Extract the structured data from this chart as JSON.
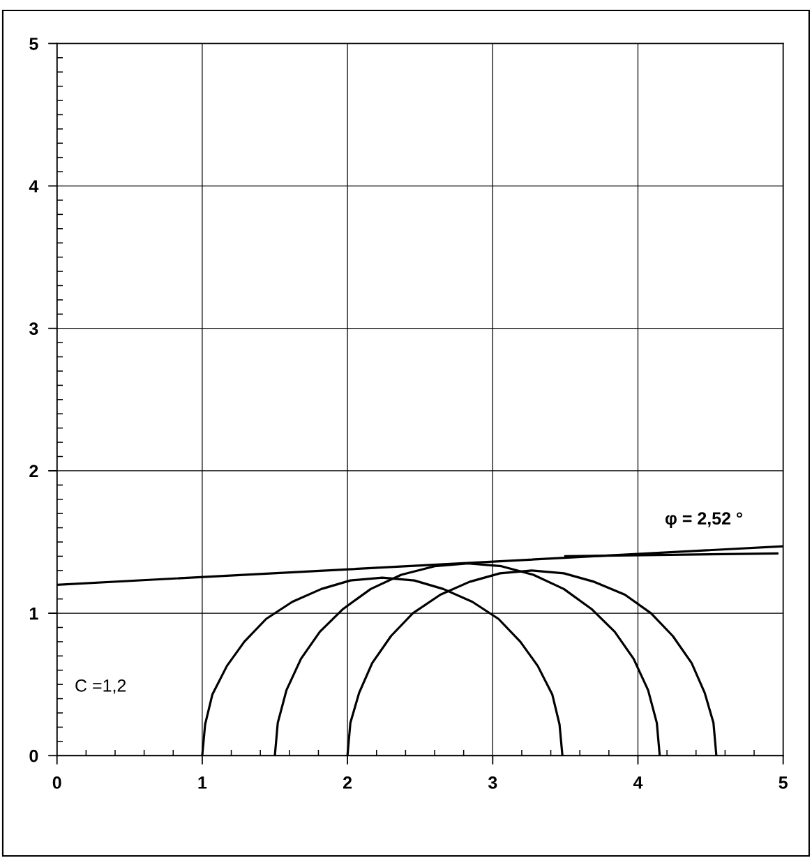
{
  "chart_data": {
    "type": "line",
    "xlim": [
      0,
      5
    ],
    "ylim": [
      0,
      5
    ],
    "xticks": [
      0,
      {
        "value": 0.2,
        "label": null
      },
      {
        "value": 0.4,
        "label": null
      },
      {
        "value": 0.6,
        "label": null
      },
      {
        "value": 0.8,
        "label": null
      },
      1,
      {
        "value": 1.2,
        "label": null
      },
      {
        "value": 1.4,
        "label": null
      },
      {
        "value": 1.6,
        "label": null
      },
      {
        "value": 1.8,
        "label": null
      },
      2,
      {
        "value": 2.2,
        "label": null
      },
      {
        "value": 2.4,
        "label": null
      },
      {
        "value": 2.6,
        "label": null
      },
      {
        "value": 2.8,
        "label": null
      },
      3,
      {
        "value": 3.2,
        "label": null
      },
      {
        "value": 3.4,
        "label": null
      },
      {
        "value": 3.6,
        "label": null
      },
      {
        "value": 3.8,
        "label": null
      },
      4,
      {
        "value": 4.2,
        "label": null
      },
      {
        "value": 4.4,
        "label": null
      },
      {
        "value": 4.6,
        "label": null
      },
      {
        "value": 4.8,
        "label": null
      },
      5
    ],
    "yticks": [
      0,
      {
        "value": 0.1,
        "label": null
      },
      {
        "value": 0.2,
        "label": null
      },
      {
        "value": 0.3,
        "label": null
      },
      {
        "value": 0.4,
        "label": null
      },
      {
        "value": 0.5,
        "label": null
      },
      {
        "value": 0.6,
        "label": null
      },
      {
        "value": 0.7,
        "label": null
      },
      {
        "value": 0.8,
        "label": null
      },
      {
        "value": 0.9,
        "label": null
      },
      1,
      {
        "value": 1.1,
        "label": null
      },
      {
        "value": 1.2,
        "label": null
      },
      {
        "value": 1.3,
        "label": null
      },
      {
        "value": 1.4,
        "label": null
      },
      {
        "value": 1.5,
        "label": null
      },
      {
        "value": 1.6,
        "label": null
      },
      {
        "value": 1.7,
        "label": null
      },
      {
        "value": 1.8,
        "label": null
      },
      {
        "value": 1.9,
        "label": null
      },
      2,
      {
        "value": 2.1,
        "label": null
      },
      {
        "value": 2.2,
        "label": null
      },
      {
        "value": 2.3,
        "label": null
      },
      {
        "value": 2.4,
        "label": null
      },
      {
        "value": 2.5,
        "label": null
      },
      {
        "value": 2.6,
        "label": null
      },
      {
        "value": 2.7,
        "label": null
      },
      {
        "value": 2.8,
        "label": null
      },
      {
        "value": 2.9,
        "label": null
      },
      3,
      {
        "value": 3.1,
        "label": null
      },
      {
        "value": 3.2,
        "label": null
      },
      {
        "value": 3.3,
        "label": null
      },
      {
        "value": 3.4,
        "label": null
      },
      {
        "value": 3.5,
        "label": null
      },
      {
        "value": 3.6,
        "label": null
      },
      {
        "value": 3.7,
        "label": null
      },
      {
        "value": 3.8,
        "label": null
      },
      {
        "value": 3.9,
        "label": null
      },
      4,
      {
        "value": 4.1,
        "label": null
      },
      {
        "value": 4.2,
        "label": null
      },
      {
        "value": 4.3,
        "label": null
      },
      {
        "value": 4.4,
        "label": null
      },
      {
        "value": 4.5,
        "label": null
      },
      {
        "value": 4.6,
        "label": null
      },
      {
        "value": 4.7,
        "label": null
      },
      {
        "value": 4.8,
        "label": null
      },
      {
        "value": 4.9,
        "label": null
      },
      5
    ],
    "grid": true,
    "line_style": "solid",
    "annotations": [
      "C =1,2",
      "φ = 2,52 °"
    ],
    "series": [
      {
        "color": "#000000",
        "x": [
          0,
          5
        ],
        "values": [
          1.2,
          1.47
        ]
      },
      {
        "color": "#000000",
        "x": [
          3.5,
          4.96
        ],
        "values": [
          1.4,
          1.42
        ]
      },
      {
        "color": "#000000",
        "x": [
          1.0,
          1.02,
          1.07,
          1.17,
          1.29,
          1.44,
          1.62,
          1.82,
          2.02,
          2.24,
          2.46,
          2.66,
          2.86,
          3.04,
          3.19,
          3.31,
          3.41,
          3.46,
          3.48
        ],
        "values": [
          0,
          0.22,
          0.43,
          0.63,
          0.8,
          0.96,
          1.08,
          1.17,
          1.23,
          1.25,
          1.23,
          1.17,
          1.08,
          0.96,
          0.8,
          0.63,
          0.43,
          0.22,
          0
        ]
      },
      {
        "color": "#000000",
        "x": [
          1.5,
          1.52,
          1.58,
          1.68,
          1.81,
          1.97,
          2.16,
          2.37,
          2.6,
          2.83,
          3.06,
          3.28,
          3.49,
          3.68,
          3.84,
          3.97,
          4.07,
          4.13,
          4.15
        ],
        "values": [
          0,
          0.23,
          0.46,
          0.68,
          0.87,
          1.03,
          1.17,
          1.27,
          1.33,
          1.35,
          1.33,
          1.27,
          1.17,
          1.03,
          0.87,
          0.68,
          0.46,
          0.23,
          0
        ]
      },
      {
        "color": "#000000",
        "x": [
          2.0,
          2.02,
          2.08,
          2.17,
          2.3,
          2.45,
          2.64,
          2.84,
          3.05,
          3.27,
          3.49,
          3.7,
          3.91,
          4.09,
          4.24,
          4.37,
          4.46,
          4.52,
          4.54
        ],
        "values": [
          0,
          0.23,
          0.44,
          0.65,
          0.84,
          1.0,
          1.13,
          1.22,
          1.28,
          1.3,
          1.28,
          1.22,
          1.13,
          1.0,
          0.84,
          0.65,
          0.44,
          0.23,
          0
        ]
      }
    ]
  }
}
